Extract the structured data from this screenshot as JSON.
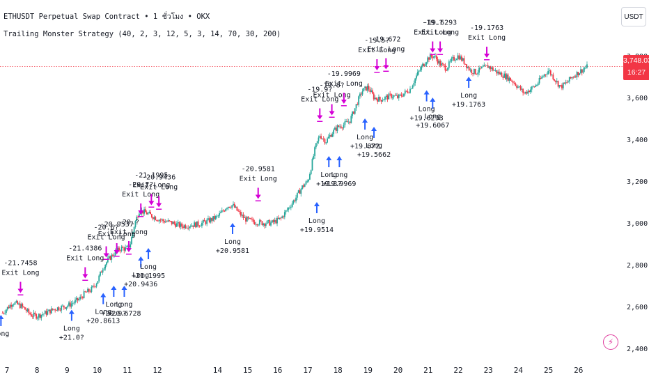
{
  "header": {
    "title": "ETHUSDT Perpetual Swap Contract • 1 ชั่วโมง • OKX",
    "strategy": "Trailing Monster Strategy (40, 2, 3, 12, 5, 3, 14, 70, 30, 200)"
  },
  "currency": "USDT",
  "last_price": {
    "price": "3,748.03",
    "countdown": "16:27",
    "value": 3748.03
  },
  "colors": {
    "up": "#26a69a",
    "down": "#f23645",
    "long": "#2962ff",
    "exit": "#d500d5",
    "price_line": "#f23645"
  },
  "icons": {
    "badge": "bolt-icon"
  },
  "chart_data": {
    "type": "candlestick",
    "title": "",
    "xlabel": "",
    "ylabel": "",
    "ylim": [
      2320,
      3880
    ],
    "x_ticks": [
      "7",
      "8",
      "9",
      "10",
      "11",
      "12",
      "14",
      "15",
      "16",
      "17",
      "18",
      "19",
      "20",
      "21",
      "22",
      "23",
      "24",
      "25",
      "26"
    ],
    "x_tick_pos": [
      0,
      1,
      2,
      3,
      4,
      5,
      7,
      8,
      9,
      10,
      11,
      12,
      13,
      14,
      15,
      16,
      17,
      18,
      19
    ],
    "y_ticks": [
      2400,
      2600,
      2800,
      3000,
      3200,
      3400,
      3600,
      3800
    ],
    "y_tick_labels": [
      "2,400.00",
      "2,600.00",
      "2,800.00",
      "3,000.00",
      "3,200.00",
      "3,400.00",
      "3,600.00",
      "3,800.00"
    ],
    "grid": false,
    "close_path": [
      [
        -0.15,
        2570
      ],
      [
        0.2,
        2620
      ],
      [
        0.5,
        2600
      ],
      [
        0.8,
        2560
      ],
      [
        1.0,
        2555
      ],
      [
        1.3,
        2570
      ],
      [
        1.6,
        2590
      ],
      [
        1.9,
        2600
      ],
      [
        2.1,
        2610
      ],
      [
        2.4,
        2635
      ],
      [
        2.6,
        2665
      ],
      [
        2.8,
        2680
      ],
      [
        3.0,
        2720
      ],
      [
        3.2,
        2790
      ],
      [
        3.4,
        2830
      ],
      [
        3.6,
        2860
      ],
      [
        3.8,
        2880
      ],
      [
        4.0,
        2875
      ],
      [
        4.1,
        2900
      ],
      [
        4.25,
        3000
      ],
      [
        4.4,
        3060
      ],
      [
        4.6,
        3050
      ],
      [
        4.8,
        3035
      ],
      [
        5.0,
        3020
      ],
      [
        5.2,
        3010
      ],
      [
        5.5,
        3000
      ],
      [
        5.8,
        2985
      ],
      [
        6.1,
        2990
      ],
      [
        6.4,
        2995
      ],
      [
        6.7,
        3010
      ],
      [
        7.0,
        3030
      ],
      [
        7.2,
        3060
      ],
      [
        7.3,
        3080
      ],
      [
        7.5,
        3085
      ],
      [
        7.7,
        3050
      ],
      [
        7.9,
        3020
      ],
      [
        8.2,
        3005
      ],
      [
        8.5,
        3000
      ],
      [
        8.8,
        3000
      ],
      [
        9.1,
        3020
      ],
      [
        9.3,
        3060
      ],
      [
        9.6,
        3120
      ],
      [
        9.8,
        3170
      ],
      [
        10.0,
        3200
      ],
      [
        10.1,
        3260
      ],
      [
        10.25,
        3360
      ],
      [
        10.4,
        3420
      ],
      [
        10.6,
        3390
      ],
      [
        10.8,
        3430
      ],
      [
        11.0,
        3460
      ],
      [
        11.2,
        3470
      ],
      [
        11.4,
        3490
      ],
      [
        11.6,
        3560
      ],
      [
        11.8,
        3630
      ],
      [
        12.0,
        3650
      ],
      [
        12.2,
        3600
      ],
      [
        12.4,
        3590
      ],
      [
        12.6,
        3600
      ],
      [
        12.8,
        3610
      ],
      [
        13.0,
        3600
      ],
      [
        13.2,
        3620
      ],
      [
        13.4,
        3640
      ],
      [
        13.6,
        3700
      ],
      [
        13.8,
        3750
      ],
      [
        14.0,
        3790
      ],
      [
        14.2,
        3800
      ],
      [
        14.4,
        3760
      ],
      [
        14.6,
        3740
      ],
      [
        14.8,
        3780
      ],
      [
        15.0,
        3800
      ],
      [
        15.2,
        3770
      ],
      [
        15.4,
        3730
      ],
      [
        15.6,
        3720
      ],
      [
        15.8,
        3740
      ],
      [
        16.0,
        3750
      ],
      [
        16.3,
        3720
      ],
      [
        16.6,
        3700
      ],
      [
        16.8,
        3680
      ],
      [
        17.0,
        3650
      ],
      [
        17.2,
        3620
      ],
      [
        17.4,
        3640
      ],
      [
        17.6,
        3660
      ],
      [
        17.8,
        3700
      ],
      [
        18.0,
        3730
      ],
      [
        18.2,
        3690
      ],
      [
        18.4,
        3650
      ],
      [
        18.6,
        3670
      ],
      [
        18.8,
        3700
      ],
      [
        19.0,
        3720
      ],
      [
        19.2,
        3740
      ],
      [
        19.3,
        3748
      ]
    ],
    "markers": [
      {
        "kind": "long",
        "x": -0.2,
        "y": 2560,
        "label": "Long",
        "profit": ""
      },
      {
        "kind": "exit",
        "x": 0.45,
        "y": 2665,
        "label": "Exit Long",
        "profit": "-21.7458"
      },
      {
        "kind": "long",
        "x": 2.15,
        "y": 2585,
        "label": "Long",
        "profit": "+21.0?"
      },
      {
        "kind": "exit",
        "x": 2.6,
        "y": 2735,
        "label": "Exit Long",
        "profit": "-21.4386"
      },
      {
        "kind": "long",
        "x": 3.2,
        "y": 2665,
        "label": "Long",
        "profit": "+20.8613"
      },
      {
        "kind": "long",
        "x": 3.55,
        "y": 2700,
        "label": "Long",
        "profit": "+20.9?"
      },
      {
        "kind": "long",
        "x": 3.9,
        "y": 2700,
        "label": "Long",
        "profit": "+20.6728"
      },
      {
        "kind": "exit",
        "x": 3.3,
        "y": 2835,
        "label": "Exit Long",
        "profit": "-20.6?"
      },
      {
        "kind": "exit",
        "x": 3.65,
        "y": 2850,
        "label": "Exit Long",
        "profit": "-20.9537"
      },
      {
        "kind": "exit",
        "x": 4.05,
        "y": 2860,
        "label": "Exit Long",
        "profit": "-20.?"
      },
      {
        "kind": "long",
        "x": 4.45,
        "y": 2840,
        "label": "Long",
        "profit": "+20.9436"
      },
      {
        "kind": "long",
        "x": 4.7,
        "y": 2880,
        "label": "Long",
        "profit": "+21.1995"
      },
      {
        "kind": "exit",
        "x": 4.45,
        "y": 3040,
        "label": "Exit Long",
        "profit": "-20.7?"
      },
      {
        "kind": "exit",
        "x": 4.8,
        "y": 3085,
        "label": "Exit Long",
        "profit": "-21.1995"
      },
      {
        "kind": "exit",
        "x": 5.05,
        "y": 3075,
        "label": "Exit Long",
        "profit": "-20.9436"
      },
      {
        "kind": "long",
        "x": 7.5,
        "y": 3000,
        "label": "Long",
        "profit": "+20.9581"
      },
      {
        "kind": "exit",
        "x": 8.35,
        "y": 3115,
        "label": "Exit Long",
        "profit": "-20.9581"
      },
      {
        "kind": "long",
        "x": 10.3,
        "y": 3100,
        "label": "Long",
        "profit": "+19.9514"
      },
      {
        "kind": "long",
        "x": 10.7,
        "y": 3320,
        "label": "Long",
        "profit": "+19.8?"
      },
      {
        "kind": "long",
        "x": 11.05,
        "y": 3320,
        "label": "Long",
        "profit": "+19.9969"
      },
      {
        "kind": "exit",
        "x": 10.4,
        "y": 3495,
        "label": "Exit Long",
        "profit": "-19.9?"
      },
      {
        "kind": "exit",
        "x": 10.8,
        "y": 3515,
        "label": "Exit Long",
        "profit": "-19.8?"
      },
      {
        "kind": "exit",
        "x": 11.2,
        "y": 3570,
        "label": "Exit Long",
        "profit": "-19.9969"
      },
      {
        "kind": "long",
        "x": 11.9,
        "y": 3500,
        "label": "Long",
        "profit": "+19.672"
      },
      {
        "kind": "long",
        "x": 12.2,
        "y": 3460,
        "label": "Long",
        "profit": "+19.5662"
      },
      {
        "kind": "exit",
        "x": 12.3,
        "y": 3730,
        "label": "Exit Long",
        "profit": "-19.5?"
      },
      {
        "kind": "exit",
        "x": 12.6,
        "y": 3735,
        "label": "Exit Long",
        "profit": "-19.672"
      },
      {
        "kind": "long",
        "x": 13.95,
        "y": 3635,
        "label": "Long",
        "profit": "+19.6293"
      },
      {
        "kind": "long",
        "x": 14.15,
        "y": 3600,
        "label": "Long",
        "profit": "+19.6067"
      },
      {
        "kind": "exit",
        "x": 14.15,
        "y": 3815,
        "label": "Exit Long",
        "profit": "-19.?"
      },
      {
        "kind": "exit",
        "x": 14.4,
        "y": 3815,
        "label": "Exit Long",
        "profit": "-19.6293"
      },
      {
        "kind": "long",
        "x": 15.35,
        "y": 3700,
        "label": "Long",
        "profit": "+19.1763"
      },
      {
        "kind": "exit",
        "x": 15.95,
        "y": 3790,
        "label": "Exit Long",
        "profit": "-19.1763"
      }
    ]
  }
}
